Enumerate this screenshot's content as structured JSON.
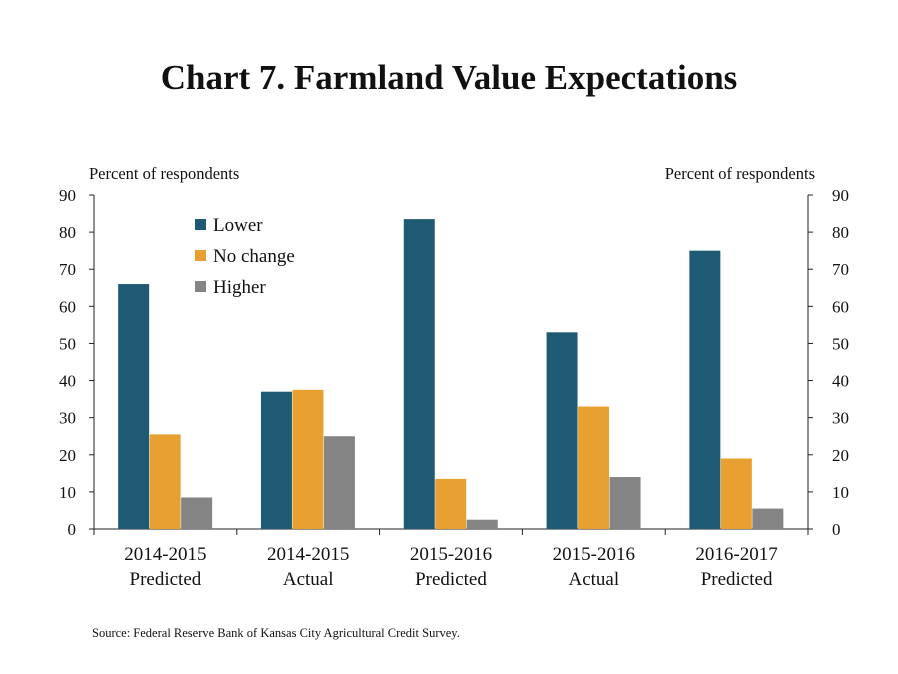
{
  "title": "Chart 7. Farmland Value Expectations",
  "source": "Source: Federal Reserve Bank of Kansas City Agricultural Credit Survey.",
  "chart_data": {
    "type": "bar",
    "title": "Chart 7. Farmland Value Expectations",
    "ylabel_left": "Percent of respondents",
    "ylabel_right": "Percent of respondents",
    "ylim": [
      0,
      90
    ],
    "yticks": [
      0,
      10,
      20,
      30,
      40,
      50,
      60,
      70,
      80,
      90
    ],
    "categories": [
      [
        "2014-2015",
        "Predicted"
      ],
      [
        "2014-2015",
        "Actual"
      ],
      [
        "2015-2016",
        "Predicted"
      ],
      [
        "2015-2016",
        "Actual"
      ],
      [
        "2016-2017",
        "Predicted"
      ]
    ],
    "series": [
      {
        "name": "Lower",
        "color": "#1e5a73",
        "values": [
          66,
          37,
          83.5,
          53,
          75
        ]
      },
      {
        "name": "No change",
        "color": "#e8a131",
        "values": [
          25.5,
          37.5,
          13.5,
          33,
          19
        ]
      },
      {
        "name": "Higher",
        "color": "#848484",
        "values": [
          8.5,
          25,
          2.5,
          14,
          5.5
        ]
      }
    ],
    "legend_position": "top-left",
    "grid": false
  }
}
